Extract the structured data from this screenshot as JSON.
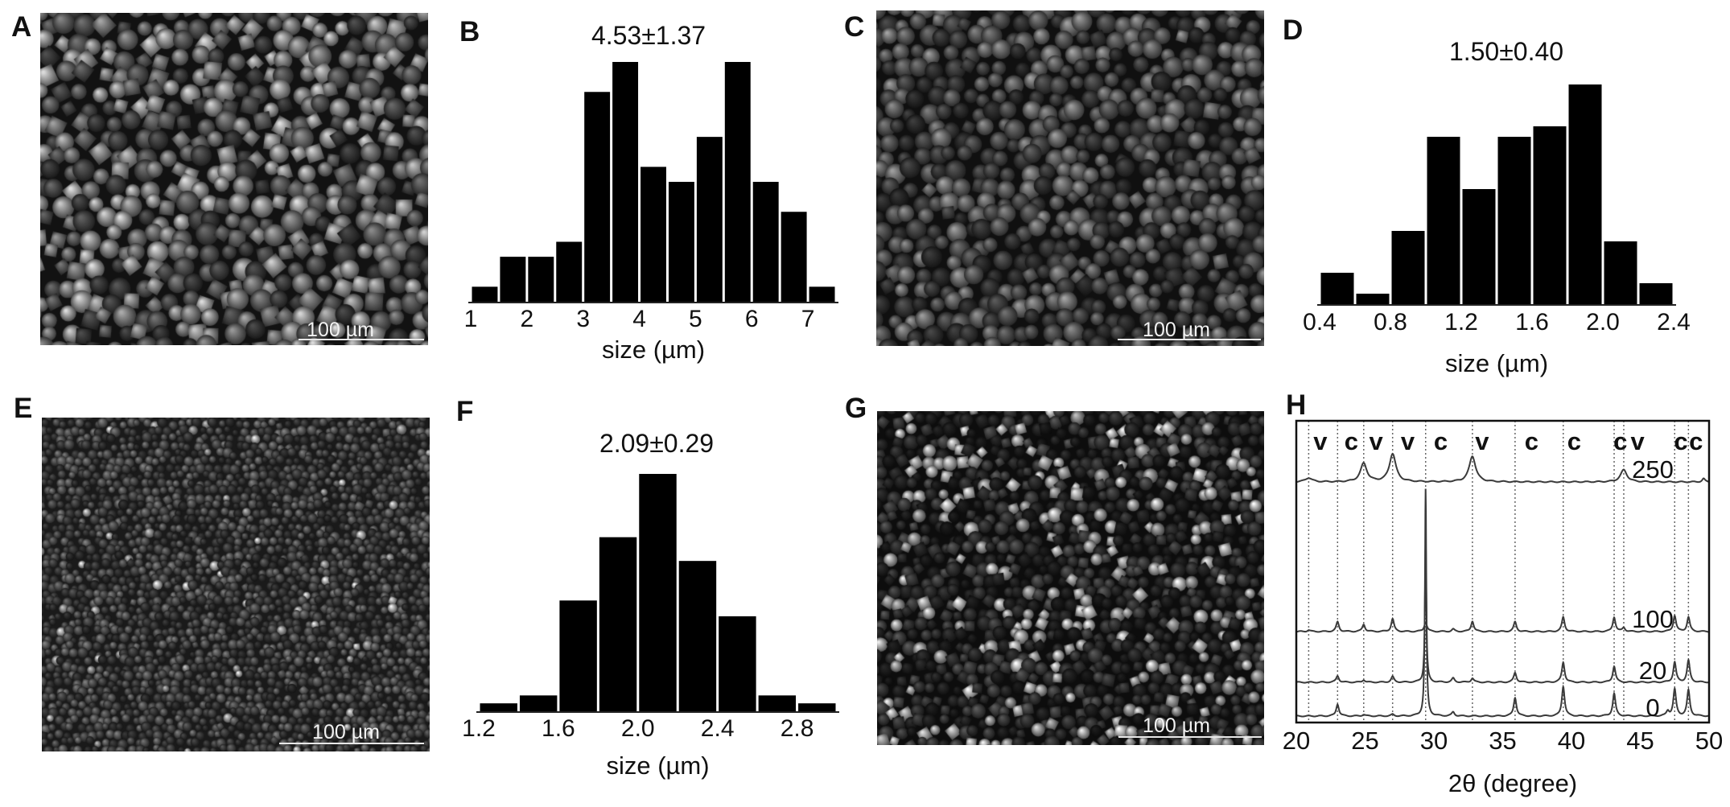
{
  "panels": {
    "A": {
      "letter": "A",
      "scale_bar": "100 µm"
    },
    "B": {
      "letter": "B"
    },
    "C": {
      "letter": "C",
      "scale_bar": "100 µm"
    },
    "D": {
      "letter": "D"
    },
    "E": {
      "letter": "E",
      "scale_bar": "100 µm"
    },
    "F": {
      "letter": "F"
    },
    "G": {
      "letter": "G",
      "scale_bar": "100 µm"
    },
    "H": {
      "letter": "H"
    }
  },
  "chart_data": [
    {
      "panel": "B",
      "type": "bar",
      "title": "4.53±1.37",
      "xlabel": "size (µm)",
      "ylabel": "",
      "xlim": [
        1,
        7.5
      ],
      "xticks": [
        "1",
        "2",
        "3",
        "4",
        "5",
        "6",
        "7"
      ],
      "bin_start": 1,
      "bin_width": 0.5,
      "values": [
        1,
        3,
        3,
        4,
        14,
        16,
        9,
        8,
        11,
        16,
        8,
        6,
        1
      ],
      "grid": false
    },
    {
      "panel": "D",
      "type": "bar",
      "title": "1.50±0.40",
      "xlabel": "size (µm)",
      "ylabel": "",
      "xlim": [
        0.4,
        2.4
      ],
      "xticks": [
        "0.4",
        "0.8",
        "1.2",
        "1.6",
        "2.0",
        "2.4"
      ],
      "bin_start": 0.4,
      "bin_width": 0.2,
      "values": [
        3,
        1,
        7,
        16,
        11,
        16,
        17,
        21,
        6,
        2
      ],
      "grid": false
    },
    {
      "panel": "F",
      "type": "bar",
      "title": "2.09±0.29",
      "xlabel": "size (µm)",
      "ylabel": "",
      "xlim": [
        1.2,
        3.0
      ],
      "xticks": [
        "1.2",
        "1.6",
        "2.0",
        "2.4",
        "2.8"
      ],
      "bin_start": 1.2,
      "bin_width": 0.2,
      "values": [
        1,
        2,
        14,
        22,
        30,
        19,
        12,
        2,
        1
      ],
      "grid": false
    },
    {
      "panel": "H",
      "type": "line",
      "title": "",
      "xlabel": "2θ (degree)",
      "ylabel": "",
      "xlim": [
        20,
        50
      ],
      "xticks": [
        "20",
        "25",
        "30",
        "35",
        "40",
        "45",
        "50"
      ],
      "reference_lines": [
        {
          "x": 20.9,
          "label": "v"
        },
        {
          "x": 23.0,
          "label": "c"
        },
        {
          "x": 24.9,
          "label": "v"
        },
        {
          "x": 27.0,
          "label": "v"
        },
        {
          "x": 29.4,
          "label": "c"
        },
        {
          "x": 32.8,
          "label": "v"
        },
        {
          "x": 35.9,
          "label": "c"
        },
        {
          "x": 39.4,
          "label": "c"
        },
        {
          "x": 43.1,
          "label": "c"
        },
        {
          "x": 43.8,
          "label": "v"
        },
        {
          "x": 47.5,
          "label": "c"
        },
        {
          "x": 48.5,
          "label": "c"
        }
      ],
      "series": [
        {
          "name": "250",
          "peaks": [
            [
              20.9,
              5
            ],
            [
              24.9,
              23
            ],
            [
              27.0,
              35
            ],
            [
              32.8,
              32
            ],
            [
              43.8,
              15
            ],
            [
              49.6,
              4
            ]
          ]
        },
        {
          "name": "100",
          "peaks": [
            [
              20.9,
              2
            ],
            [
              23.0,
              12
            ],
            [
              24.9,
              9
            ],
            [
              27.0,
              16
            ],
            [
              29.4,
              12
            ],
            [
              31.4,
              3
            ],
            [
              32.8,
              13
            ],
            [
              35.9,
              12
            ],
            [
              39.4,
              18
            ],
            [
              43.1,
              18
            ],
            [
              43.8,
              5
            ],
            [
              47.5,
              20
            ],
            [
              48.5,
              18
            ]
          ]
        },
        {
          "name": "20",
          "peaks": [
            [
              23.0,
              8
            ],
            [
              24.9,
              3
            ],
            [
              27.0,
              7
            ],
            [
              29.4,
              180
            ],
            [
              31.4,
              5
            ],
            [
              32.8,
              5
            ],
            [
              35.9,
              12
            ],
            [
              39.4,
              25
            ],
            [
              43.1,
              20
            ],
            [
              47.5,
              25
            ],
            [
              48.5,
              27
            ]
          ]
        },
        {
          "name": "0",
          "peaks": [
            [
              23.0,
              15
            ],
            [
              24.9,
              2
            ],
            [
              27.0,
              2
            ],
            [
              29.4,
              282
            ],
            [
              31.4,
              5
            ],
            [
              35.9,
              23
            ],
            [
              39.4,
              37
            ],
            [
              43.1,
              28
            ],
            [
              47.0,
              6
            ],
            [
              47.5,
              33
            ],
            [
              48.5,
              32
            ]
          ]
        }
      ],
      "colors": {
        "trace": "#3a3a3a",
        "reference_line": "#666666"
      },
      "grid": false
    }
  ]
}
